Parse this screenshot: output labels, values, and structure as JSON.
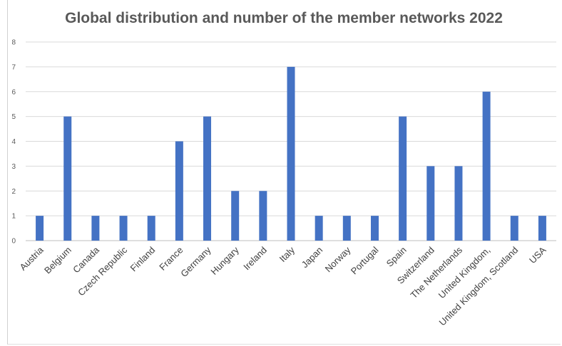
{
  "chart_data": {
    "type": "bar",
    "title": "Global distribution and number of the member networks 2022",
    "xlabel": "",
    "ylabel": "",
    "ylim": [
      0,
      8
    ],
    "yticks": [
      0,
      1,
      2,
      3,
      4,
      5,
      6,
      7,
      8
    ],
    "grid": true,
    "legend": "none",
    "bar_color": "#4472C4",
    "categories": [
      "Austria",
      "Belgium",
      "Canada",
      "Czech Republic",
      "Finland",
      "France",
      "Germany",
      "Hungary",
      "Ireland",
      "Italy",
      "Japan",
      "Norway",
      "Portugal",
      "Spain",
      "Switzerland",
      "The Netherlands",
      "United Kingdom,",
      "United Kingdom, Scotland",
      "USA"
    ],
    "values": [
      1,
      5,
      1,
      1,
      1,
      4,
      5,
      2,
      2,
      7,
      1,
      1,
      1,
      5,
      3,
      3,
      6,
      1,
      1
    ]
  }
}
